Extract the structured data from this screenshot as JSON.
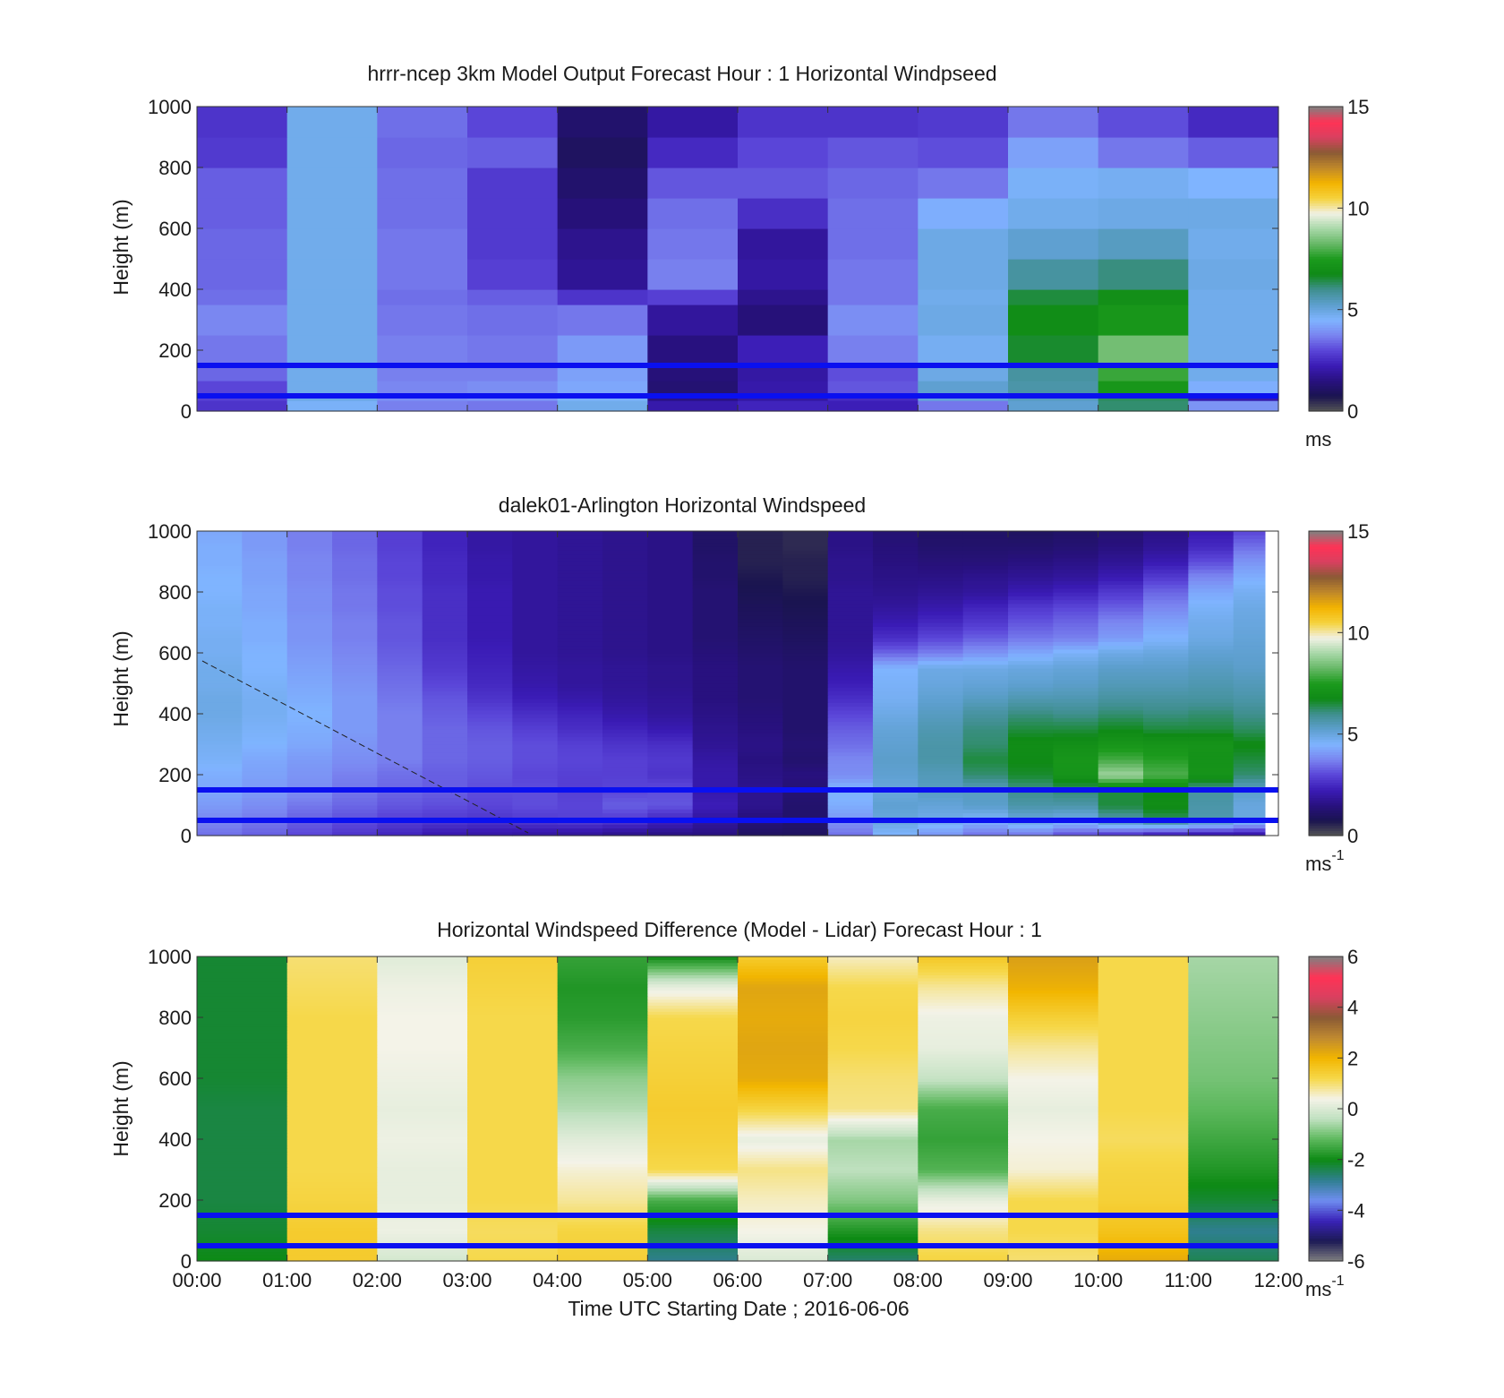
{
  "figure": {
    "x_ticks": [
      "00:00",
      "01:00",
      "02:00",
      "03:00",
      "04:00",
      "05:00",
      "06:00",
      "07:00",
      "08:00",
      "09:00",
      "10:00",
      "11:00",
      "12:00"
    ],
    "x_label": "Time UTC  Starting Date ; 2016-06-06"
  },
  "colors": {
    "reference_line": "#0a10f0",
    "speed_colormap": [
      "#555555",
      "#1a1450",
      "#28117f",
      "#3a1bb5",
      "#5a45d8",
      "#7a84f0",
      "#7fb4ff",
      "#5d9fce",
      "#3f8f8f",
      "#0f8a16",
      "#1b9a1c",
      "#66b866",
      "#a8d8a8",
      "#f1f1e4",
      "#f5d23c",
      "#f3b300",
      "#c0882a",
      "#8a5a35",
      "#d94060",
      "#ff3355",
      "#808080"
    ],
    "diff_colormap": [
      "#808080",
      "#1c1a55",
      "#3a23b8",
      "#6f8ef0",
      "#2f7f90",
      "#0d8a14",
      "#5cb85c",
      "#bfe0bf",
      "#f4f3e8",
      "#f6d84a",
      "#f2b600",
      "#c08a30",
      "#8a5a35",
      "#d94060",
      "#ff3355",
      "#808080"
    ]
  },
  "chart_data": [
    {
      "type": "heatmap",
      "title": "hrrr-ncep 3km Model Output   Forecast Hour : 1 Horizontal Windpseed",
      "ylabel": "Height (m)",
      "ylim": [
        0,
        1000
      ],
      "y_ticks": [
        "0",
        "200",
        "400",
        "600",
        "800",
        "1000"
      ],
      "xlim_hours": [
        0,
        12
      ],
      "colorbar": {
        "min": 0,
        "max": 15,
        "ticks": [
          "0",
          "5",
          "10",
          "15"
        ],
        "unit": "ms",
        "unit_superscript": ""
      },
      "reference_lines_m": [
        50,
        150
      ],
      "time_columns_hours": [
        0,
        1,
        2,
        3,
        4,
        5,
        6,
        7,
        8,
        9,
        10,
        11
      ],
      "height_edges_m": [
        0,
        35,
        60,
        100,
        150,
        250,
        350,
        400,
        500,
        600,
        700,
        800,
        900,
        1000
      ],
      "values": [
        [
          2.7,
          4.6,
          3.7,
          3.6,
          4.8,
          2.1,
          2.4,
          2.3,
          3.6,
          5.2,
          6.2,
          4.0
        ],
        [
          2.9,
          4.9,
          3.9,
          4.0,
          4.6,
          1.6,
          2.0,
          2.5,
          5.1,
          5.4,
          6.3,
          2.1
        ],
        [
          3.0,
          4.8,
          3.8,
          3.9,
          4.3,
          1.3,
          2.1,
          3.2,
          5.2,
          5.7,
          7.3,
          4.4
        ],
        [
          3.4,
          4.8,
          3.7,
          3.7,
          4.2,
          1.4,
          2.0,
          3.1,
          4.9,
          5.8,
          7.8,
          4.8
        ],
        [
          3.6,
          4.8,
          3.7,
          3.6,
          4.1,
          1.5,
          2.3,
          3.7,
          4.7,
          6.6,
          8.4,
          4.8
        ],
        [
          3.8,
          4.8,
          3.6,
          3.5,
          3.6,
          1.9,
          1.4,
          3.9,
          4.9,
          6.9,
          7.3,
          4.8
        ],
        [
          3.5,
          4.8,
          3.5,
          3.3,
          2.7,
          2.9,
          1.7,
          3.6,
          4.8,
          6.5,
          7.0,
          4.8
        ],
        [
          3.4,
          4.8,
          3.6,
          2.9,
          1.8,
          3.7,
          2.0,
          3.6,
          4.9,
          5.8,
          6.1,
          4.9
        ],
        [
          3.4,
          4.8,
          3.6,
          2.8,
          1.7,
          3.6,
          1.9,
          3.5,
          4.9,
          5.2,
          5.4,
          4.8
        ],
        [
          3.3,
          4.8,
          3.5,
          2.8,
          1.4,
          3.5,
          2.6,
          3.5,
          4.4,
          4.8,
          4.9,
          4.9
        ],
        [
          3.3,
          4.8,
          3.5,
          2.8,
          1.2,
          3.2,
          3.2,
          3.4,
          3.6,
          4.6,
          4.7,
          4.5
        ],
        [
          2.8,
          4.8,
          3.4,
          3.3,
          1.0,
          2.5,
          3.0,
          3.2,
          3.1,
          4.2,
          3.6,
          3.3
        ],
        [
          2.7,
          4.8,
          3.5,
          3.0,
          1.2,
          2.0,
          2.7,
          2.7,
          2.8,
          3.6,
          3.1,
          2.5
        ]
      ]
    },
    {
      "type": "heatmap",
      "title": "dalek01-Arlington  Horizontal Windspeed",
      "ylabel": "Height (m)",
      "ylim": [
        0,
        1000
      ],
      "y_ticks": [
        "0",
        "200",
        "400",
        "600",
        "800",
        "1000"
      ],
      "xlim_hours": [
        0,
        12
      ],
      "colorbar": {
        "min": 0,
        "max": 15,
        "ticks": [
          "0",
          "5",
          "10",
          "15"
        ],
        "unit": "ms",
        "unit_superscript": "-1"
      },
      "reference_lines_m": [
        50,
        150
      ],
      "data_end_hour": 11.85,
      "time_columns_hours": [
        0,
        0.5,
        1,
        1.5,
        2,
        2.5,
        3,
        3.5,
        4,
        4.5,
        5,
        5.5,
        6,
        6.5,
        7,
        7.5,
        8,
        8.5,
        9,
        9.5,
        10,
        10.5,
        11,
        11.5
      ],
      "height_levels_m": [
        0,
        50,
        100,
        150,
        200,
        250,
        300,
        350,
        400,
        450,
        500,
        550,
        600,
        650,
        700,
        750,
        800,
        850,
        900,
        950,
        1000
      ],
      "values": [
        [
          3.5,
          3.3,
          3.0,
          2.7,
          2.4,
          2.1,
          2.0,
          1.9,
          1.8,
          1.6,
          1.5,
          1.5,
          1.0,
          1.0,
          3.5,
          4.5,
          4.0,
          3.5,
          3.5,
          3.0,
          2.5,
          2.0,
          1.8,
          1.8
        ],
        [
          3.8,
          3.6,
          3.3,
          3.1,
          2.9,
          2.8,
          2.7,
          2.8,
          2.9,
          2.8,
          2.4,
          1.9,
          1.4,
          1.2,
          4.0,
          5.0,
          4.8,
          4.5,
          5.0,
          4.8,
          5.6,
          6.2,
          5.6,
          5.0
        ],
        [
          4.1,
          3.9,
          3.6,
          3.4,
          3.2,
          3.1,
          3.0,
          3.1,
          3.0,
          3.3,
          3.2,
          2.3,
          1.7,
          1.2,
          4.4,
          5.2,
          5.1,
          5.3,
          5.7,
          5.7,
          6.5,
          6.9,
          5.7,
          5.0
        ],
        [
          4.3,
          4.1,
          3.9,
          3.6,
          3.4,
          3.3,
          3.1,
          3.1,
          2.9,
          3.0,
          3.1,
          2.1,
          1.7,
          1.3,
          4.6,
          5.0,
          5.4,
          5.4,
          6.0,
          6.2,
          6.5,
          6.7,
          5.8,
          5.3
        ],
        [
          4.4,
          4.2,
          4.0,
          3.7,
          3.5,
          3.3,
          3.2,
          3.0,
          2.9,
          2.9,
          2.7,
          2.1,
          1.6,
          1.5,
          3.9,
          5.2,
          5.5,
          6.2,
          6.6,
          7.2,
          8.9,
          8.0,
          7.2,
          6.2
        ],
        [
          4.6,
          4.3,
          4.1,
          3.9,
          3.7,
          3.4,
          3.3,
          3.1,
          3.0,
          2.9,
          2.8,
          2.0,
          1.5,
          1.2,
          3.8,
          5.3,
          5.7,
          6.5,
          6.8,
          7.3,
          7.9,
          7.6,
          7.1,
          6.5
        ],
        [
          4.7,
          4.5,
          4.3,
          4.0,
          3.7,
          3.4,
          3.3,
          3.1,
          2.9,
          2.7,
          2.6,
          1.8,
          1.6,
          1.3,
          3.5,
          5.2,
          5.7,
          6.2,
          6.9,
          7.0,
          7.3,
          7.2,
          7.2,
          6.8
        ],
        [
          4.8,
          4.6,
          4.4,
          4.1,
          3.7,
          3.4,
          3.2,
          2.9,
          2.6,
          2.4,
          2.2,
          1.7,
          1.5,
          1.2,
          3.3,
          5.1,
          5.6,
          6.1,
          6.5,
          6.5,
          6.7,
          6.5,
          6.5,
          6.3
        ],
        [
          4.9,
          4.7,
          4.5,
          4.1,
          3.7,
          3.3,
          3.0,
          2.6,
          2.4,
          2.1,
          1.9,
          1.6,
          1.4,
          1.2,
          3.0,
          4.9,
          5.4,
          5.8,
          6.1,
          6.0,
          6.2,
          6.1,
          6.2,
          6.0
        ],
        [
          4.9,
          4.7,
          4.4,
          4.1,
          3.6,
          3.2,
          2.7,
          2.3,
          2.1,
          1.9,
          1.8,
          1.5,
          1.3,
          1.2,
          2.6,
          4.7,
          5.2,
          5.4,
          5.6,
          5.6,
          5.8,
          5.8,
          5.8,
          5.7
        ],
        [
          4.8,
          4.6,
          4.3,
          4.0,
          3.5,
          3.0,
          2.5,
          2.1,
          1.9,
          1.8,
          1.7,
          1.5,
          1.3,
          1.2,
          2.3,
          4.6,
          5.0,
          5.1,
          5.2,
          5.3,
          5.5,
          5.5,
          5.6,
          5.5
        ],
        [
          4.8,
          4.5,
          4.2,
          3.9,
          3.4,
          2.8,
          2.4,
          2.0,
          1.9,
          1.8,
          1.7,
          1.5,
          1.3,
          1.2,
          2.1,
          4.5,
          4.9,
          4.9,
          5.0,
          5.1,
          5.3,
          5.3,
          5.4,
          5.3
        ],
        [
          4.7,
          4.5,
          4.1,
          3.8,
          3.3,
          2.7,
          2.3,
          1.9,
          1.8,
          1.7,
          1.6,
          1.4,
          1.2,
          1.1,
          1.9,
          3.4,
          3.7,
          4.0,
          4.3,
          4.6,
          4.9,
          5.0,
          5.2,
          5.2
        ],
        [
          4.7,
          4.4,
          4.0,
          3.7,
          3.2,
          2.6,
          2.2,
          1.9,
          1.8,
          1.7,
          1.6,
          1.3,
          1.1,
          1.0,
          1.8,
          2.6,
          3.0,
          3.3,
          3.6,
          3.7,
          4.1,
          4.5,
          4.9,
          5.1
        ],
        [
          4.6,
          4.4,
          4.0,
          3.7,
          3.2,
          2.6,
          2.2,
          1.9,
          1.8,
          1.7,
          1.6,
          1.3,
          1.0,
          0.9,
          1.8,
          2.2,
          2.5,
          2.8,
          3.2,
          3.4,
          3.8,
          4.2,
          4.8,
          5.0
        ],
        [
          4.6,
          4.3,
          3.9,
          3.6,
          3.1,
          2.6,
          2.2,
          1.9,
          1.8,
          1.7,
          1.6,
          1.3,
          0.9,
          0.8,
          1.8,
          1.9,
          2.1,
          2.4,
          2.8,
          3.0,
          3.3,
          3.8,
          4.6,
          4.9
        ],
        [
          4.5,
          4.3,
          3.9,
          3.6,
          3.1,
          2.6,
          2.2,
          1.9,
          1.8,
          1.7,
          1.6,
          1.3,
          0.8,
          0.7,
          1.8,
          1.7,
          1.8,
          1.9,
          2.2,
          2.4,
          2.8,
          3.4,
          4.3,
          4.7
        ],
        [
          4.5,
          4.2,
          3.8,
          3.5,
          3.0,
          2.5,
          2.1,
          1.9,
          1.8,
          1.7,
          1.6,
          1.2,
          0.7,
          0.6,
          1.7,
          1.6,
          1.6,
          1.7,
          1.8,
          1.9,
          2.2,
          2.8,
          3.8,
          4.4
        ],
        [
          4.4,
          4.2,
          3.8,
          3.5,
          3.0,
          2.5,
          2.1,
          1.9,
          1.8,
          1.7,
          1.6,
          1.2,
          0.6,
          0.6,
          1.7,
          1.5,
          1.4,
          1.4,
          1.5,
          1.6,
          1.8,
          2.2,
          3.1,
          4.0
        ],
        [
          4.4,
          4.1,
          3.7,
          3.4,
          2.9,
          2.4,
          2.0,
          1.9,
          1.8,
          1.7,
          1.6,
          1.1,
          0.6,
          0.5,
          1.6,
          1.4,
          1.2,
          1.2,
          1.2,
          1.3,
          1.5,
          1.8,
          2.5,
          3.5
        ],
        [
          4.3,
          4.1,
          3.7,
          3.4,
          2.9,
          2.4,
          2.0,
          1.9,
          1.8,
          1.7,
          1.6,
          1.1,
          0.6,
          0.5,
          1.6,
          1.3,
          1.1,
          1.1,
          1.0,
          1.1,
          1.3,
          1.6,
          2.2,
          3.0
        ]
      ]
    },
    {
      "type": "heatmap",
      "title": "Horizontal Windspeed Difference (Model - Lidar) Forecast Hour : 1",
      "ylabel": "Height (m)",
      "ylim": [
        0,
        1000
      ],
      "y_ticks": [
        "0",
        "200",
        "400",
        "600",
        "800",
        "1000"
      ],
      "xlim_hours": [
        0,
        12
      ],
      "colorbar": {
        "min": -6,
        "max": 6,
        "ticks": [
          "-6",
          "-4",
          "-2",
          "0",
          "2",
          "4",
          "6"
        ],
        "unit": "ms",
        "unit_superscript": "-1"
      },
      "reference_lines_m": [
        50,
        150
      ],
      "time_columns_hours": [
        0,
        1,
        2,
        3,
        4,
        5,
        6,
        7,
        8,
        9,
        10,
        11
      ],
      "height_levels_m": [
        0,
        100,
        200,
        300,
        400,
        500,
        600,
        700,
        800,
        900,
        1000
      ],
      "values": [
        [
          -2.0,
          1.5,
          -0.1,
          1.2,
          1.4,
          -2.8,
          0.0,
          -2.6,
          1.3,
          1.0,
          2.2,
          -2.4
        ],
        [
          -2.2,
          1.5,
          0.3,
          1.1,
          1.3,
          -2.3,
          0.4,
          -1.8,
          0.9,
          1.2,
          1.7,
          -2.8
        ],
        [
          -2.3,
          1.3,
          0.2,
          1.2,
          0.8,
          -1.4,
          0.6,
          -0.9,
          0.2,
          1.2,
          1.4,
          -2.2
        ],
        [
          -2.3,
          1.2,
          0.2,
          1.2,
          0.5,
          1.2,
          0.9,
          -0.4,
          -1.3,
          0.5,
          1.3,
          -1.8
        ],
        [
          -2.3,
          1.2,
          0.3,
          1.2,
          0.1,
          1.4,
          0.2,
          -0.6,
          -1.6,
          0.4,
          1.1,
          -1.5
        ],
        [
          -2.3,
          1.2,
          0.2,
          1.2,
          -0.5,
          1.5,
          1.3,
          0.9,
          -1.4,
          0.2,
          1.2,
          -1.2
        ],
        [
          -2.2,
          1.2,
          0.3,
          1.2,
          -0.8,
          1.4,
          2.2,
          1.0,
          -0.3,
          0.4,
          1.2,
          -1.0
        ],
        [
          -2.2,
          1.2,
          0.4,
          1.2,
          -1.4,
          1.3,
          2.3,
          1.2,
          0.2,
          0.8,
          1.2,
          -0.9
        ],
        [
          -2.2,
          1.2,
          0.4,
          1.2,
          -1.7,
          1.2,
          2.2,
          1.3,
          0.3,
          1.4,
          1.2,
          -0.8
        ],
        [
          -2.2,
          1.1,
          0.3,
          1.3,
          -1.8,
          0.2,
          2.3,
          1.2,
          0.8,
          2.1,
          1.2,
          -0.7
        ],
        [
          -2.2,
          1.0,
          0.1,
          1.4,
          -1.6,
          -2.0,
          1.5,
          0.6,
          1.6,
          2.4,
          1.2,
          -0.6
        ]
      ]
    }
  ]
}
